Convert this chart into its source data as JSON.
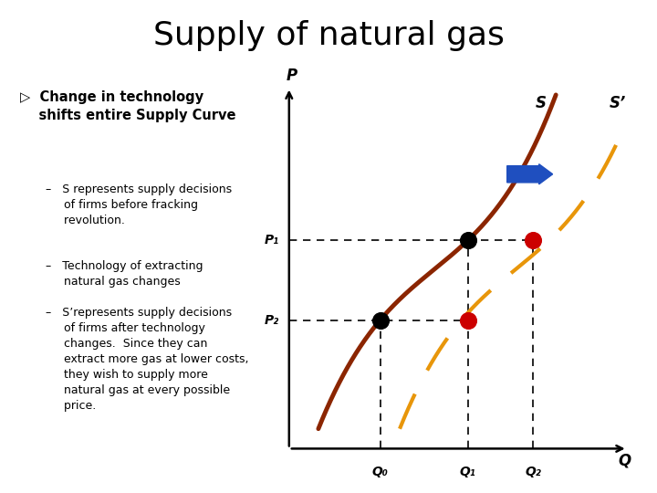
{
  "title": "Supply of natural gas",
  "title_fontsize": 26,
  "bg_color": "#ffffff",
  "curve_S_color": "#8B2500",
  "curve_S_prime_color": "#E8960A",
  "arrow_color": "#1f4fbf",
  "dot_color_black": "#000000",
  "dot_color_red": "#cc0000",
  "axis_label_P": "P",
  "axis_label_Q": "Q",
  "label_S": "S",
  "label_S_prime": "S’",
  "label_P1": "P₁",
  "label_P2": "P₂",
  "label_Q0": "Q₀",
  "label_Q1": "Q₁",
  "label_Q2": "Q₂",
  "P1": 0.6,
  "P2": 0.37,
  "Q0": 0.28,
  "Q1": 0.55,
  "Q2": 0.75
}
